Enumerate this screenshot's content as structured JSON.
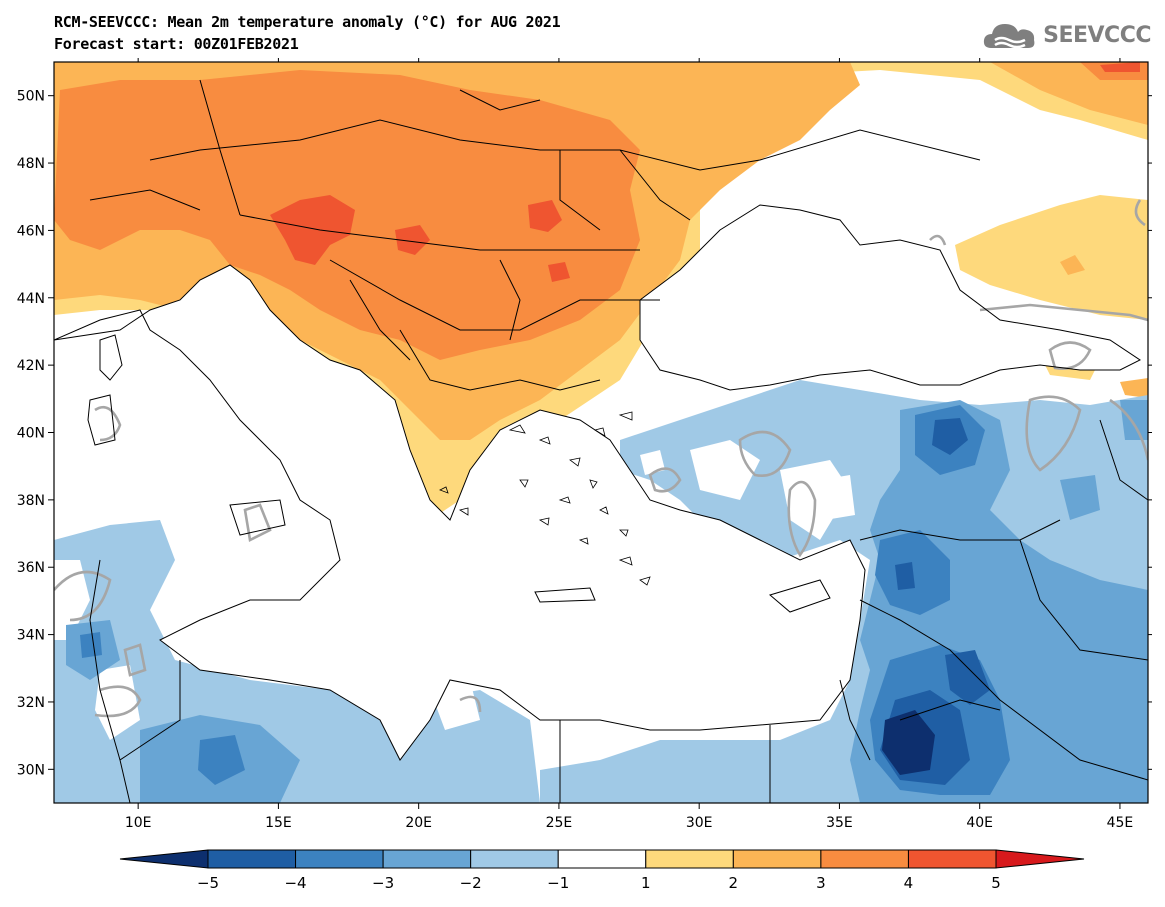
{
  "header": {
    "title": "RCM-SEEVCCC: Mean 2m temperature anomaly (°C) for AUG 2021",
    "subtitle": "Forecast start: 00Z01FEB2021",
    "logo_text": "SEEVCCC",
    "logo_icon": "cloud-icon"
  },
  "map": {
    "lon_range": [
      7,
      46
    ],
    "lat_range": [
      29,
      51
    ],
    "lon_ticks": [
      {
        "value": 10,
        "label": "10E"
      },
      {
        "value": 15,
        "label": "15E"
      },
      {
        "value": 20,
        "label": "20E"
      },
      {
        "value": 25,
        "label": "25E"
      },
      {
        "value": 30,
        "label": "30E"
      },
      {
        "value": 35,
        "label": "35E"
      },
      {
        "value": 40,
        "label": "40E"
      },
      {
        "value": 45,
        "label": "45E"
      }
    ],
    "lat_ticks": [
      {
        "value": 30,
        "label": "30N"
      },
      {
        "value": 32,
        "label": "32N"
      },
      {
        "value": 34,
        "label": "34N"
      },
      {
        "value": 36,
        "label": "36N"
      },
      {
        "value": 38,
        "label": "38N"
      },
      {
        "value": 40,
        "label": "40N"
      },
      {
        "value": 42,
        "label": "42N"
      },
      {
        "value": 44,
        "label": "44N"
      },
      {
        "value": 46,
        "label": "46N"
      },
      {
        "value": 48,
        "label": "48N"
      },
      {
        "value": 50,
        "label": "50N"
      }
    ]
  },
  "colorbar": {
    "ticks": [
      "−5",
      "−4",
      "−3",
      "−2",
      "−1",
      "1",
      "2",
      "3",
      "4",
      "5"
    ],
    "colors": {
      "below_min": "#0d2f6e",
      "bins": [
        "#1f5ea4",
        "#3c82c0",
        "#68a5d4",
        "#a0c9e6",
        "#ffffff",
        "#fed97c",
        "#fcb555",
        "#f88c40",
        "#ef5530"
      ],
      "above_max": "#d7191c"
    }
  }
}
